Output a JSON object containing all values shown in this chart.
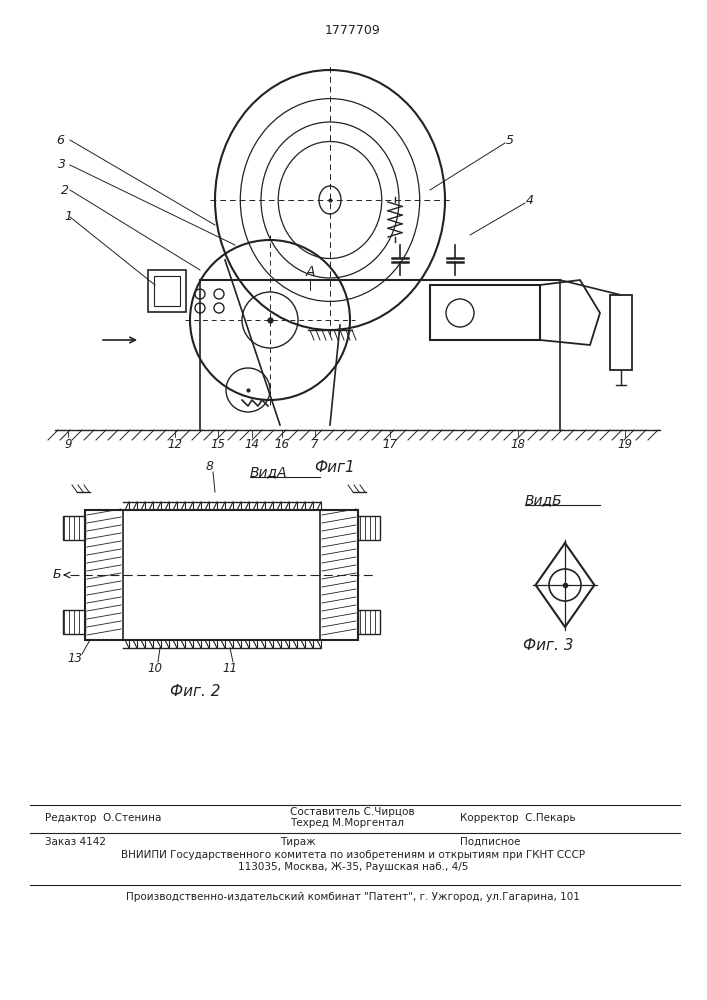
{
  "patent_number": "1777709",
  "fig1_caption": "Фиг1",
  "fig2_caption": "Фиг. 2",
  "fig3_caption": "Фиг. 3",
  "vid_a_label": "ВидА",
  "vid_b_label": "ВидБ",
  "editor_line": "Редактор  О.Стенина",
  "composer_line1": "Составитель С.Чирцов",
  "composer_line2": "Техред М.Моргентал",
  "corrector_line": "Корректор  С.Пекарь",
  "order_line": "Заказ 4142",
  "tirazh_line": "Тираж",
  "podpisnoe_line": "Подписное",
  "vnipi_line": "ВНИИПИ Государственного комитета по изобретениям и открытиям при ГКНТ СССР",
  "address_line": "113035, Москва, Ж-35, Раушская наб., 4/5",
  "publisher_line": "Производственно-издательский комбинат \"Патент\", г. Ужгород, ул.Гагарина, 101",
  "bg_color": "#ffffff",
  "line_color": "#222222",
  "text_color": "#222222"
}
